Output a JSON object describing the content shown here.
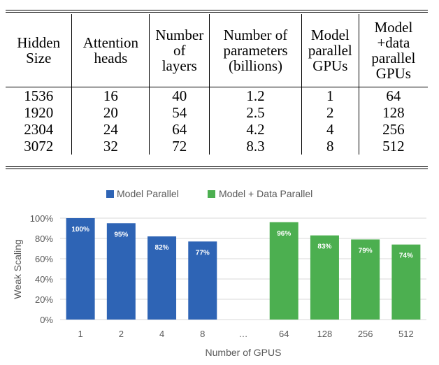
{
  "table": {
    "headers": [
      "Hidden Size",
      "Attention heads",
      "Number of layers",
      "Number of parameters (billions)",
      "Model parallel GPUs",
      "Model +data parallel GPUs"
    ],
    "rows": [
      [
        "1536",
        "16",
        "40",
        "1.2",
        "1",
        "64"
      ],
      [
        "1920",
        "20",
        "54",
        "2.5",
        "2",
        "128"
      ],
      [
        "2304",
        "24",
        "64",
        "4.2",
        "4",
        "256"
      ],
      [
        "3072",
        "32",
        "72",
        "8.3",
        "8",
        "512"
      ]
    ]
  },
  "chart_data": {
    "type": "bar",
    "title": "",
    "xlabel": "Number of GPUS",
    "ylabel": "Weak Scaling",
    "categories": [
      "1",
      "2",
      "4",
      "8",
      "…",
      "64",
      "128",
      "256",
      "512"
    ],
    "ylim": [
      0,
      100
    ],
    "yticks": [
      "0%",
      "20%",
      "40%",
      "60%",
      "80%",
      "100%"
    ],
    "grid": true,
    "legend_position": "top",
    "series": [
      {
        "name": "Model Parallel",
        "color": "#2e64b5",
        "values": [
          100,
          95,
          82,
          77,
          null,
          null,
          null,
          null,
          null
        ],
        "labels": [
          "100%",
          "95%",
          "82%",
          "77%",
          "",
          "",
          "",
          "",
          ""
        ]
      },
      {
        "name": "Model + Data Parallel",
        "color": "#4caf50",
        "values": [
          null,
          null,
          null,
          null,
          null,
          96,
          83,
          79,
          74
        ],
        "labels": [
          "",
          "",
          "",
          "",
          "",
          "96%",
          "83%",
          "79%",
          "74%"
        ]
      }
    ]
  }
}
